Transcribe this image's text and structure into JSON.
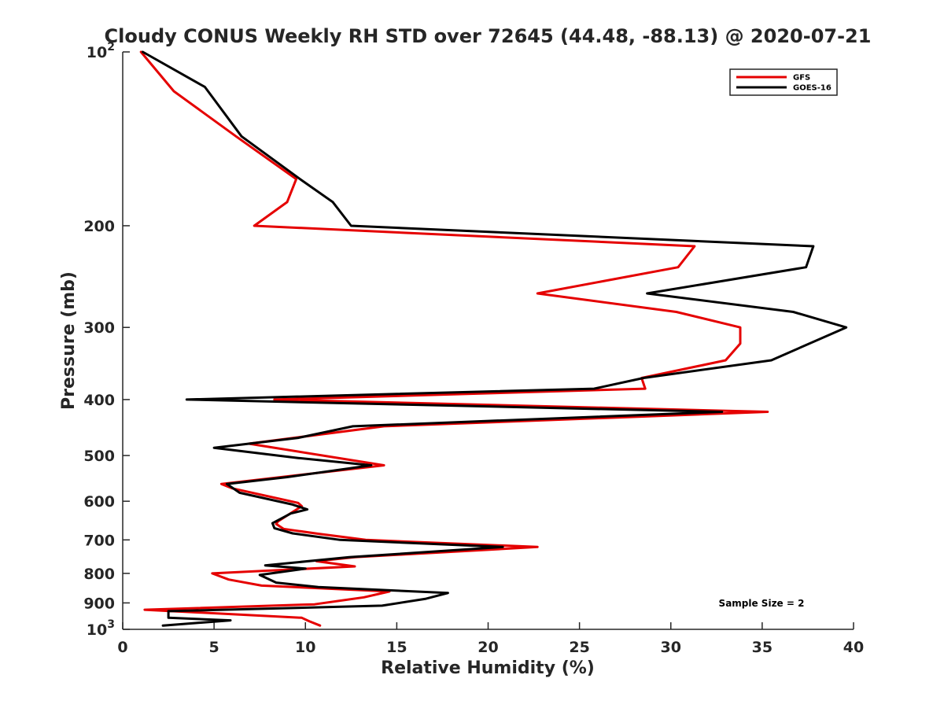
{
  "chart_data": {
    "type": "line",
    "title": "Cloudy CONUS Weekly RH STD over 72645 (44.48, -88.13) @ 2020-07-21",
    "xlabel": "Relative Humidity (%)",
    "ylabel": "Pressure (mb)",
    "xlim": [
      0,
      40
    ],
    "ylim": [
      100,
      1000
    ],
    "yscale": "log",
    "y_reversed": true,
    "grid": false,
    "legend_position": "top-right",
    "x_ticks": [
      0,
      5,
      10,
      15,
      20,
      25,
      30,
      35,
      40
    ],
    "x_tick_labels": [
      "0",
      "5",
      "10",
      "15",
      "20",
      "25",
      "30",
      "35",
      "40"
    ],
    "y_ticks": [
      100,
      200,
      300,
      400,
      500,
      600,
      700,
      800,
      900,
      1000
    ],
    "y_tick_labels": [
      {
        "base": "10",
        "exp": "2"
      },
      {
        "base": "200",
        "exp": ""
      },
      {
        "base": "300",
        "exp": ""
      },
      {
        "base": "400",
        "exp": ""
      },
      {
        "base": "500",
        "exp": ""
      },
      {
        "base": "600",
        "exp": ""
      },
      {
        "base": "700",
        "exp": ""
      },
      {
        "base": "800",
        "exp": ""
      },
      {
        "base": "900",
        "exp": ""
      },
      {
        "base": "10",
        "exp": "3"
      }
    ],
    "annotation": "Sample Size = 2",
    "series": [
      {
        "name": "GFS",
        "color": "#e50000",
        "points": [
          [
            1.0,
            100
          ],
          [
            2.8,
            117
          ],
          [
            6.2,
            140
          ],
          [
            9.5,
            166
          ],
          [
            9.0,
            182
          ],
          [
            7.2,
            200
          ],
          [
            31.3,
            217
          ],
          [
            30.4,
            236
          ],
          [
            22.7,
            262
          ],
          [
            30.3,
            282
          ],
          [
            33.8,
            300
          ],
          [
            33.8,
            320
          ],
          [
            33.0,
            342
          ],
          [
            28.4,
            367
          ],
          [
            28.6,
            383
          ],
          [
            8.3,
            400
          ],
          [
            35.3,
            420
          ],
          [
            14.3,
            445
          ],
          [
            6.9,
            477
          ],
          [
            14.3,
            520
          ],
          [
            5.4,
            560
          ],
          [
            6.0,
            570
          ],
          [
            9.6,
            604
          ],
          [
            9.8,
            612
          ],
          [
            8.5,
            650
          ],
          [
            8.4,
            657
          ],
          [
            8.8,
            670
          ],
          [
            10.7,
            683
          ],
          [
            13.3,
            700
          ],
          [
            22.7,
            720
          ],
          [
            12.7,
            750
          ],
          [
            10.6,
            762
          ],
          [
            12.7,
            778
          ],
          [
            4.9,
            800
          ],
          [
            5.8,
            820
          ],
          [
            7.6,
            840
          ],
          [
            14.6,
            860
          ],
          [
            13.2,
            880
          ],
          [
            10.5,
            905
          ],
          [
            1.2,
            925
          ],
          [
            9.8,
            955
          ],
          [
            10.2,
            968
          ],
          [
            10.8,
            985
          ]
        ]
      },
      {
        "name": "GOES-16",
        "color": "#000000",
        "points": [
          [
            1.1,
            100
          ],
          [
            4.5,
            115
          ],
          [
            6.5,
            140
          ],
          [
            9.7,
            166
          ],
          [
            11.5,
            182
          ],
          [
            12.5,
            200
          ],
          [
            37.8,
            217
          ],
          [
            37.4,
            236
          ],
          [
            28.7,
            262
          ],
          [
            36.7,
            282
          ],
          [
            39.6,
            300
          ],
          [
            35.5,
            342
          ],
          [
            28.5,
            367
          ],
          [
            25.8,
            383
          ],
          [
            3.5,
            400
          ],
          [
            32.8,
            420
          ],
          [
            12.6,
            445
          ],
          [
            9.6,
            466
          ],
          [
            5.0,
            485
          ],
          [
            9.6,
            505
          ],
          [
            13.6,
            520
          ],
          [
            9.0,
            545
          ],
          [
            5.7,
            560
          ],
          [
            6.4,
            580
          ],
          [
            9.3,
            608
          ],
          [
            10.1,
            620
          ],
          [
            9.2,
            630
          ],
          [
            8.2,
            655
          ],
          [
            8.3,
            668
          ],
          [
            9.3,
            682
          ],
          [
            11.9,
            700
          ],
          [
            20.8,
            720
          ],
          [
            12.4,
            750
          ],
          [
            7.8,
            775
          ],
          [
            10.0,
            785
          ],
          [
            7.5,
            805
          ],
          [
            8.4,
            830
          ],
          [
            10.7,
            845
          ],
          [
            17.8,
            865
          ],
          [
            16.6,
            885
          ],
          [
            14.2,
            910
          ],
          [
            2.5,
            930
          ],
          [
            2.5,
            955
          ],
          [
            5.9,
            965
          ],
          [
            2.2,
            985
          ]
        ]
      }
    ]
  }
}
